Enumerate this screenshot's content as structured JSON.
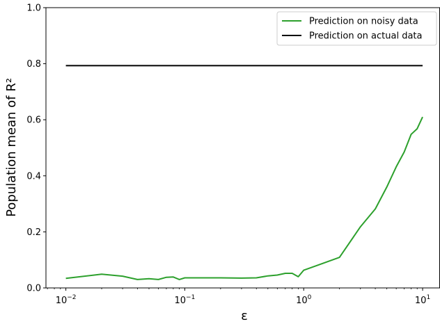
{
  "chart_data": {
    "type": "line",
    "title": "",
    "xlabel": "ε",
    "ylabel": "Population mean of R²",
    "x_scale": "log",
    "xlim": [
      0.0068,
      14.0
    ],
    "ylim": [
      0,
      1.0
    ],
    "x_ticks": [
      {
        "value": 0.01,
        "base": "10",
        "exp": "−2"
      },
      {
        "value": 0.1,
        "base": "10",
        "exp": "−1"
      },
      {
        "value": 1,
        "base": "10",
        "exp": "0"
      },
      {
        "value": 10,
        "base": "10",
        "exp": "1"
      }
    ],
    "y_ticks": [
      "0.0",
      "0.2",
      "0.4",
      "0.6",
      "0.8",
      "1.0"
    ],
    "grid": false,
    "legend_position": "top-right",
    "series": [
      {
        "name": "Prediction on noisy data",
        "color": "#2ca02c",
        "x": [
          0.01,
          0.02,
          0.03,
          0.04,
          0.05,
          0.06,
          0.07,
          0.08,
          0.09,
          0.1,
          0.2,
          0.3,
          0.4,
          0.5,
          0.6,
          0.7,
          0.8,
          0.9,
          1,
          2,
          3,
          4,
          5,
          6,
          7,
          8,
          9,
          10
        ],
        "y": [
          0.034,
          0.049,
          0.042,
          0.03,
          0.033,
          0.03,
          0.038,
          0.039,
          0.03,
          0.036,
          0.036,
          0.035,
          0.036,
          0.043,
          0.046,
          0.052,
          0.052,
          0.04,
          0.063,
          0.109,
          0.218,
          0.282,
          0.36,
          0.432,
          0.485,
          0.548,
          0.568,
          0.61
        ]
      },
      {
        "name": "Prediction on actual data",
        "color": "#000000",
        "x": [
          0.01,
          10
        ],
        "y": [
          0.793,
          0.793
        ]
      }
    ]
  }
}
